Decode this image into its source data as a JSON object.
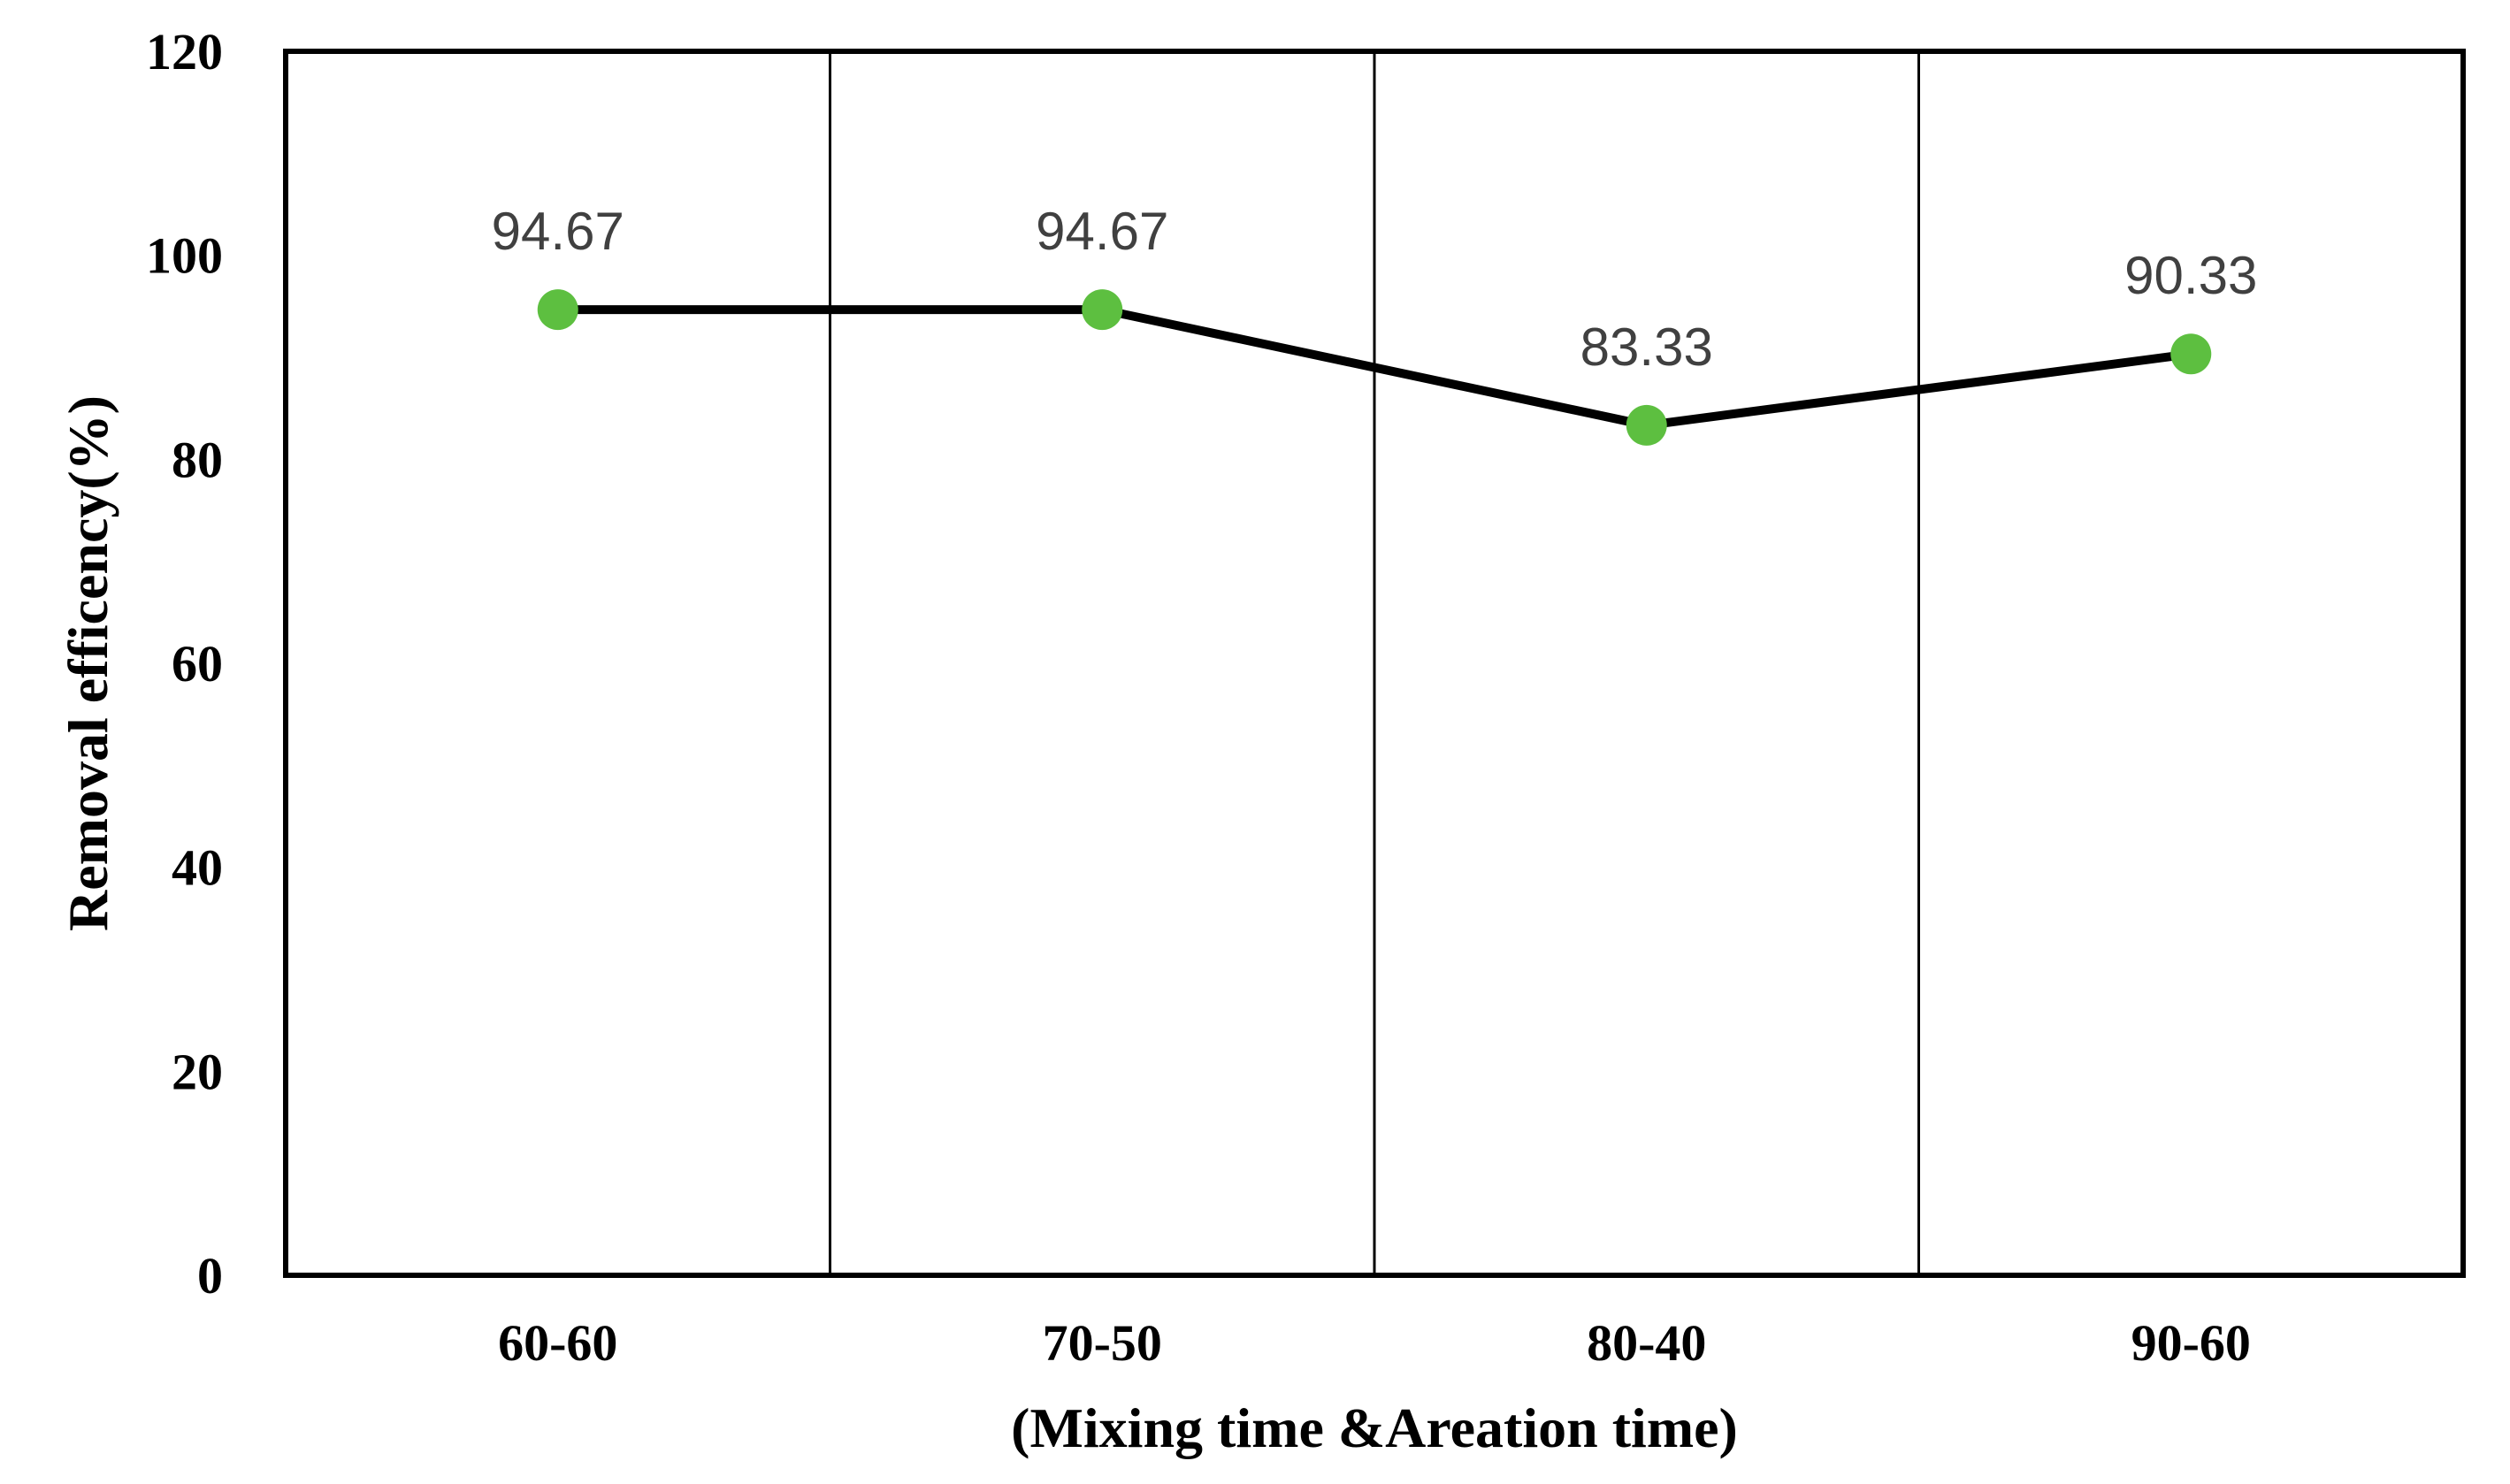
{
  "chart_data": {
    "type": "line",
    "categories": [
      "60-60",
      "70-50",
      "80-40",
      "90-60"
    ],
    "values": [
      94.67,
      94.67,
      83.33,
      90.33
    ],
    "data_labels": [
      "94.67",
      "94.67",
      "83.33",
      "90.33"
    ],
    "title": "",
    "xlabel": "(Mixing time &Areation time)",
    "ylabel": "Removal efficency(%)",
    "ylim": [
      0,
      120
    ],
    "yticks": [
      0,
      20,
      40,
      60,
      80,
      100,
      120
    ],
    "grid": "vertical-category-separators",
    "legend": "none",
    "colors": {
      "line": "#000000",
      "marker": "#5dbf40",
      "data_label": "#404040",
      "axis": "#000000",
      "background": "#ffffff"
    }
  }
}
